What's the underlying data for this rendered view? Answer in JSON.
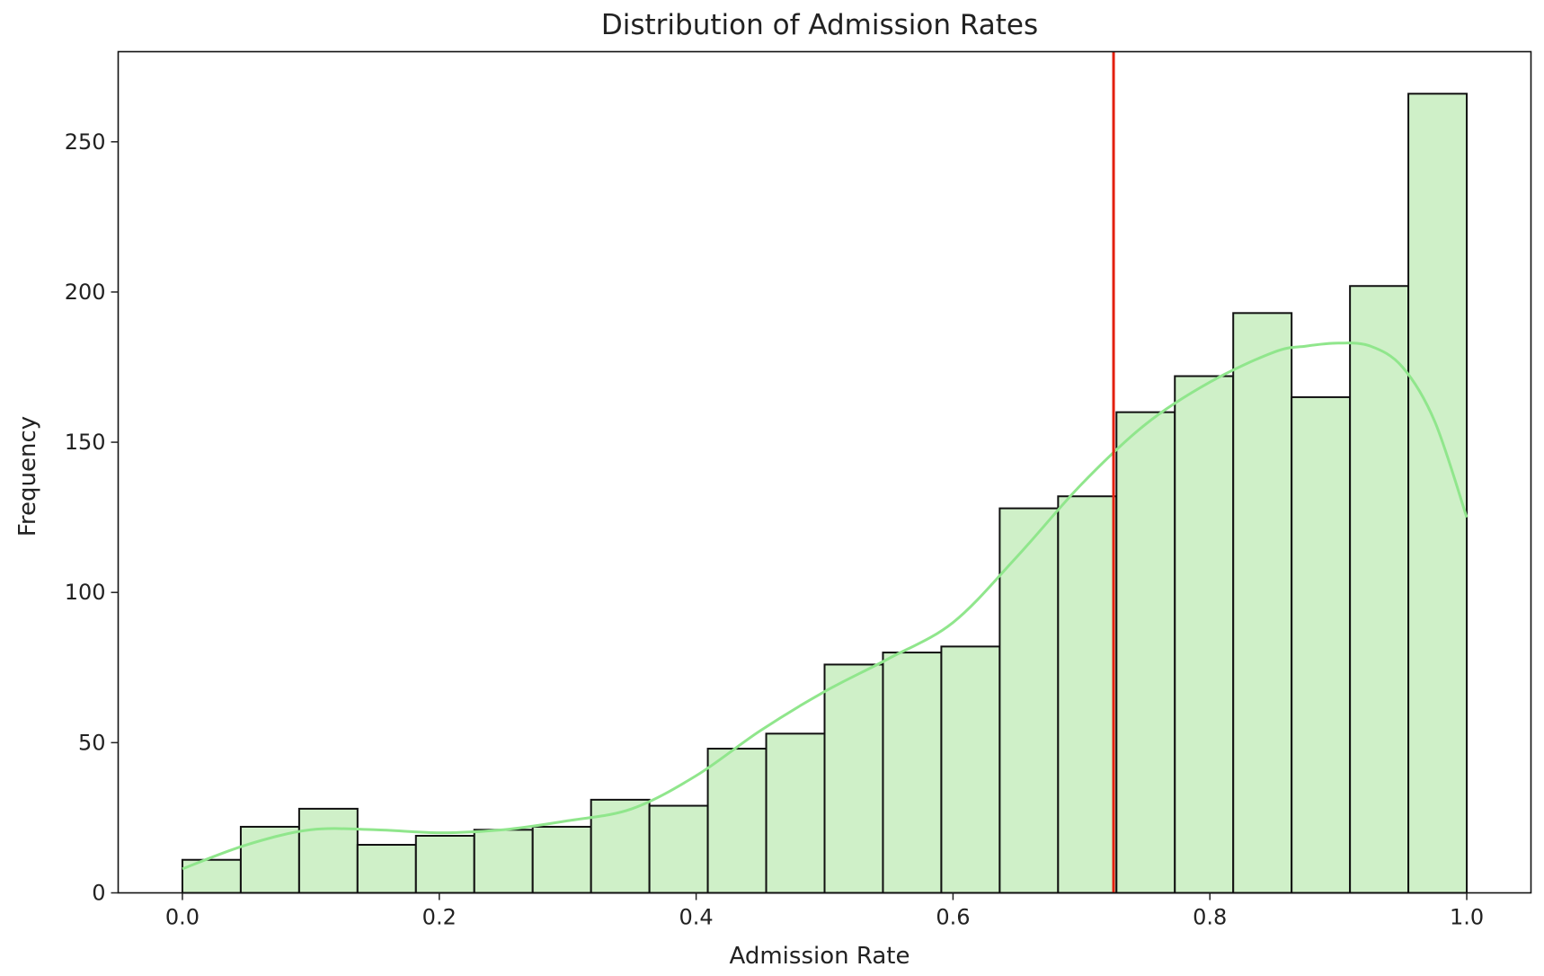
{
  "chart_data": {
    "type": "bar",
    "title": "Distribution of Admission Rates",
    "xlabel": "Admission Rate",
    "ylabel": "Frequency",
    "xlim": [
      -0.05,
      1.05
    ],
    "ylim": [
      0,
      280
    ],
    "grid": false,
    "xticks": [
      0.0,
      0.2,
      0.4,
      0.6,
      0.8,
      1.0
    ],
    "xtick_labels": [
      "0.0",
      "0.2",
      "0.4",
      "0.6",
      "0.8",
      "1.0"
    ],
    "yticks": [
      0,
      50,
      100,
      150,
      200,
      250
    ],
    "ytick_labels": [
      "0",
      "50",
      "100",
      "150",
      "200",
      "250"
    ],
    "bins": {
      "edges_start": 0.0,
      "edges_end": 1.0,
      "count": 22,
      "values": [
        11,
        22,
        28,
        16,
        19,
        21,
        22,
        31,
        29,
        48,
        53,
        76,
        80,
        82,
        128,
        132,
        160,
        172,
        193,
        165,
        202,
        266
      ]
    },
    "kde": {
      "x": [
        0.0,
        0.05,
        0.1,
        0.15,
        0.2,
        0.25,
        0.3,
        0.35,
        0.4,
        0.45,
        0.5,
        0.55,
        0.6,
        0.65,
        0.7,
        0.75,
        0.8,
        0.85,
        0.875,
        0.9,
        0.925,
        0.95,
        0.975,
        1.0
      ],
      "y": [
        8,
        16,
        21,
        21,
        20,
        21,
        24,
        28,
        39,
        54,
        67,
        78,
        90,
        112,
        136,
        156,
        170,
        180,
        182,
        183,
        182,
        175,
        157,
        125
      ]
    },
    "vline": {
      "x": 0.725
    },
    "colors": {
      "bar_fill": "#cff0c8",
      "bar_edge": "#111111",
      "kde_line": "#90e68c",
      "vline": "#e3200f"
    }
  }
}
